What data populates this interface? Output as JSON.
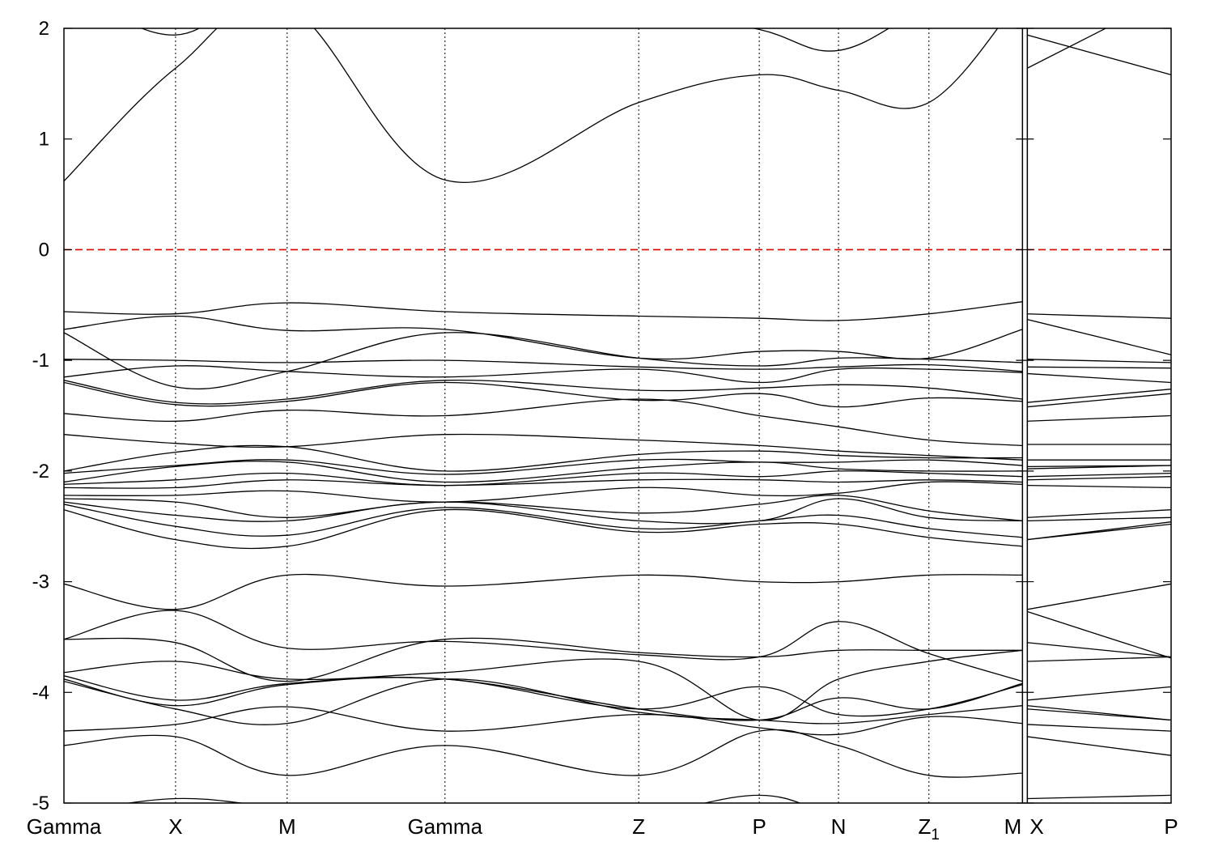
{
  "chart_data": {
    "type": "line",
    "title": "",
    "xlabel": "",
    "ylabel": "",
    "ylim": [
      -5,
      2
    ],
    "yticks": [
      2,
      1,
      0,
      -1,
      -2,
      -3,
      -4,
      -5
    ],
    "grid": "vertical dotted lines at high-symmetry points",
    "fermi_level": {
      "value": 0,
      "color": "#dd0000",
      "style": "dashed"
    },
    "line_color": "#000000",
    "path_segments": [
      {
        "kpoints": [
          {
            "label": "Gamma",
            "pos": 0.0
          },
          {
            "label": "X",
            "pos": 1.0
          },
          {
            "label": "M",
            "pos": 2.0
          },
          {
            "label": "Gamma",
            "pos": 3.414
          },
          {
            "label": "Z",
            "pos": 5.15
          },
          {
            "label": "P",
            "pos": 6.23
          },
          {
            "label": "N",
            "pos": 6.94
          },
          {
            "label": "Z1",
            "label_main": "Z",
            "label_sub": "1",
            "pos": 7.75
          },
          {
            "label": "M",
            "pos": 8.61
          }
        ]
      },
      {
        "kpoints": [
          {
            "label": "X",
            "pos": 8.61
          },
          {
            "label": "P",
            "pos": 9.92
          }
        ]
      }
    ],
    "x": [
      0.0,
      1.0,
      2.0,
      3.414,
      5.15,
      6.23,
      6.94,
      7.75,
      8.61,
      8.61,
      9.92
    ],
    "bands": [
      [
        0.62,
        1.64,
        2.2,
        0.63,
        1.33,
        1.58,
        1.44,
        1.33,
        2.3,
        1.64,
        2.3
      ],
      [
        2.4,
        1.94,
        2.5,
        2.6,
        2.2,
        1.99,
        1.8,
        2.2,
        2.5,
        1.94,
        1.58
      ],
      [
        -0.56,
        -0.58,
        -0.48,
        -0.56,
        -0.6,
        -0.62,
        -0.64,
        -0.58,
        -0.47,
        -0.58,
        -0.62
      ],
      [
        -0.72,
        -0.6,
        -0.73,
        -0.72,
        -0.98,
        -0.92,
        -0.92,
        -0.98,
        -0.72,
        -0.63,
        -0.95
      ],
      [
        -0.75,
        -1.24,
        -1.1,
        -0.75,
        -0.98,
        -1.05,
        -0.98,
        -0.99,
        -1.02,
        -0.99,
        -1.02
      ],
      [
        -0.99,
        -1.0,
        -1.02,
        -1.0,
        -1.06,
        -1.08,
        -1.06,
        -1.04,
        -1.1,
        -1.06,
        -1.07
      ],
      [
        -1.15,
        -1.05,
        -1.1,
        -1.15,
        -1.08,
        -1.2,
        -1.08,
        -1.08,
        -1.11,
        -1.12,
        -1.2
      ],
      [
        -1.18,
        -1.38,
        -1.35,
        -1.18,
        -1.27,
        -1.25,
        -1.22,
        -1.25,
        -1.35,
        -1.38,
        -1.26
      ],
      [
        -1.2,
        -1.4,
        -1.37,
        -1.2,
        -1.36,
        -1.3,
        -1.42,
        -1.34,
        -1.37,
        -1.42,
        -1.3
      ],
      [
        -1.48,
        -1.55,
        -1.45,
        -1.5,
        -1.35,
        -1.5,
        -1.6,
        -1.72,
        -1.77,
        -1.55,
        -1.5
      ],
      [
        -1.67,
        -1.75,
        -1.78,
        -1.67,
        -1.72,
        -1.77,
        -1.82,
        -1.86,
        -1.9,
        -1.76,
        -1.76
      ],
      [
        -2.0,
        -1.83,
        -1.78,
        -2.0,
        -1.85,
        -1.82,
        -1.86,
        -1.88,
        -1.88,
        -1.9,
        -1.9
      ],
      [
        -2.02,
        -1.95,
        -1.9,
        -2.03,
        -1.9,
        -1.92,
        -1.92,
        -1.9,
        -1.95,
        -1.96,
        -1.95
      ],
      [
        -2.1,
        -1.96,
        -1.92,
        -2.1,
        -1.97,
        -1.92,
        -1.98,
        -2.0,
        -2.0,
        -1.98,
        -1.95
      ],
      [
        -2.12,
        -2.08,
        -2.02,
        -2.13,
        -2.02,
        -2.05,
        -2.0,
        -2.02,
        -2.05,
        -2.05,
        -2.02
      ],
      [
        -2.15,
        -2.15,
        -2.08,
        -2.13,
        -2.08,
        -2.08,
        -2.1,
        -2.08,
        -2.1,
        -2.08,
        -2.05
      ],
      [
        -2.22,
        -2.22,
        -2.18,
        -2.28,
        -2.15,
        -2.22,
        -2.2,
        -2.1,
        -2.12,
        -2.13,
        -2.15
      ],
      [
        -2.25,
        -2.28,
        -2.42,
        -2.28,
        -2.38,
        -2.3,
        -2.22,
        -2.36,
        -2.45,
        -2.42,
        -2.35
      ],
      [
        -2.28,
        -2.4,
        -2.45,
        -2.28,
        -2.45,
        -2.45,
        -2.25,
        -2.42,
        -2.45,
        -2.45,
        -2.42
      ],
      [
        -2.3,
        -2.5,
        -2.58,
        -2.33,
        -2.52,
        -2.45,
        -2.4,
        -2.52,
        -2.6,
        -2.62,
        -2.46
      ],
      [
        -2.35,
        -2.62,
        -2.68,
        -2.35,
        -2.55,
        -2.48,
        -2.48,
        -2.6,
        -2.68,
        -2.62,
        -2.48
      ],
      [
        -3.02,
        -3.25,
        -2.94,
        -3.04,
        -2.94,
        -3.0,
        -3.0,
        -2.94,
        -2.94,
        -3.25,
        -3.02
      ],
      [
        -3.52,
        -3.26,
        -3.6,
        -3.54,
        -3.66,
        -3.68,
        -3.36,
        -3.65,
        -3.9,
        -3.27,
        -3.69
      ],
      [
        -3.52,
        -3.55,
        -3.9,
        -3.52,
        -3.64,
        -3.68,
        -3.62,
        -3.62,
        -3.62,
        -3.55,
        -3.68
      ],
      [
        -3.82,
        -3.72,
        -3.88,
        -3.82,
        -3.72,
        -4.25,
        -3.88,
        -3.72,
        -3.62,
        -3.72,
        -3.68
      ],
      [
        -3.85,
        -4.07,
        -3.92,
        -3.88,
        -4.15,
        -4.25,
        -4.05,
        -4.15,
        -3.92,
        -4.07,
        -3.95
      ],
      [
        -3.88,
        -4.12,
        -3.93,
        -3.88,
        -4.15,
        -3.95,
        -4.2,
        -4.15,
        -3.93,
        -4.12,
        -4.25
      ],
      [
        -3.9,
        -4.15,
        -4.28,
        -3.88,
        -4.18,
        -4.25,
        -4.28,
        -4.2,
        -4.12,
        -4.15,
        -4.25
      ],
      [
        -4.35,
        -4.29,
        -4.13,
        -4.35,
        -4.2,
        -4.32,
        -4.38,
        -4.22,
        -4.28,
        -4.29,
        -4.35
      ],
      [
        -4.48,
        -4.4,
        -4.75,
        -4.48,
        -4.75,
        -4.35,
        -4.48,
        -4.75,
        -4.73,
        -4.4,
        -4.57
      ],
      [
        -5.1,
        -4.96,
        -5.05,
        -5.2,
        -5.1,
        -4.93,
        -5.1,
        -5.1,
        -5.05,
        -4.96,
        -4.93
      ]
    ]
  }
}
